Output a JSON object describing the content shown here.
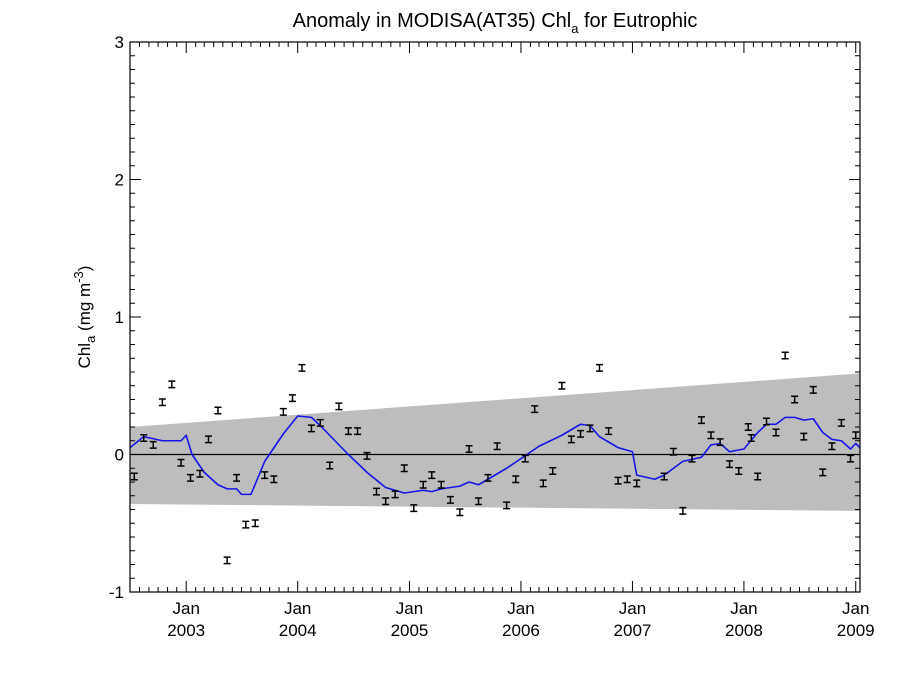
{
  "chart_data": {
    "type": "line",
    "title": {
      "prefix": "Anomaly in MODISA(AT35) Chl",
      "subscript": "a",
      "suffix": " for Eutrophic"
    },
    "ylabel": {
      "main": "Chl",
      "subscript": "a",
      "unit_open": " (mg m",
      "unit_exp": "-3",
      "unit_close": ")"
    },
    "xlim": [
      "2002-07-01",
      "2009-01-15"
    ],
    "ylim": [
      -1,
      3
    ],
    "yticks": [
      -1,
      0,
      1,
      2,
      3
    ],
    "ytick_labels": [
      "-1",
      "0",
      "1",
      "2",
      "3"
    ],
    "xticks": [
      {
        "date": "2003-01-01",
        "month": "Jan",
        "year": "2003"
      },
      {
        "date": "2004-01-01",
        "month": "Jan",
        "year": "2004"
      },
      {
        "date": "2005-01-01",
        "month": "Jan",
        "year": "2005"
      },
      {
        "date": "2006-01-01",
        "month": "Jan",
        "year": "2006"
      },
      {
        "date": "2007-01-01",
        "month": "Jan",
        "year": "2007"
      },
      {
        "date": "2008-01-01",
        "month": "Jan",
        "year": "2008"
      },
      {
        "date": "2009-01-01",
        "month": "Jan",
        "year": "2009"
      }
    ],
    "zero_line": 0,
    "band": {
      "color": "#bdbdbd",
      "upper": [
        [
          "2002-07-01",
          0.2
        ],
        [
          "2009-01-15",
          0.59
        ]
      ],
      "lower": [
        [
          "2002-07-01",
          -0.36
        ],
        [
          "2009-01-15",
          -0.41
        ]
      ]
    },
    "series": [
      {
        "kind": "monthly_anomaly_errorbars",
        "color": "#000000",
        "points": [
          [
            "2002-07-15",
            -0.16
          ],
          [
            "2002-08-15",
            0.12
          ],
          [
            "2002-09-15",
            0.07
          ],
          [
            "2002-10-15",
            0.38
          ],
          [
            "2002-11-15",
            0.51
          ],
          [
            "2002-12-15",
            -0.06
          ],
          [
            "2003-01-15",
            -0.17
          ],
          [
            "2003-02-15",
            -0.14
          ],
          [
            "2003-03-15",
            0.11
          ],
          [
            "2003-04-15",
            0.32
          ],
          [
            "2003-05-15",
            -0.77
          ],
          [
            "2003-06-15",
            -0.17
          ],
          [
            "2003-07-15",
            -0.51
          ],
          [
            "2003-08-15",
            -0.5
          ],
          [
            "2003-09-15",
            -0.15
          ],
          [
            "2003-10-15",
            -0.18
          ],
          [
            "2003-11-15",
            0.31
          ],
          [
            "2003-12-15",
            0.41
          ],
          [
            "2004-01-15",
            0.63
          ],
          [
            "2004-02-15",
            0.19
          ],
          [
            "2004-03-15",
            0.23
          ],
          [
            "2004-04-15",
            -0.08
          ],
          [
            "2004-05-15",
            0.35
          ],
          [
            "2004-06-15",
            0.17
          ],
          [
            "2004-07-15",
            0.17
          ],
          [
            "2004-08-15",
            -0.01
          ],
          [
            "2004-09-15",
            -0.27
          ],
          [
            "2004-10-15",
            -0.34
          ],
          [
            "2004-11-15",
            -0.29
          ],
          [
            "2004-12-15",
            -0.1
          ],
          [
            "2005-01-15",
            -0.39
          ],
          [
            "2005-02-15",
            -0.22
          ],
          [
            "2005-03-15",
            -0.15
          ],
          [
            "2005-04-15",
            -0.22
          ],
          [
            "2005-05-15",
            -0.33
          ],
          [
            "2005-06-15",
            -0.42
          ],
          [
            "2005-07-15",
            0.04
          ],
          [
            "2005-08-15",
            -0.34
          ],
          [
            "2005-09-15",
            -0.17
          ],
          [
            "2005-10-15",
            0.06
          ],
          [
            "2005-11-15",
            -0.37
          ],
          [
            "2005-12-15",
            -0.18
          ],
          [
            "2006-01-15",
            -0.03
          ],
          [
            "2006-02-15",
            0.33
          ],
          [
            "2006-03-15",
            -0.21
          ],
          [
            "2006-04-15",
            -0.12
          ],
          [
            "2006-05-15",
            0.5
          ],
          [
            "2006-06-15",
            0.11
          ],
          [
            "2006-07-15",
            0.15
          ],
          [
            "2006-08-15",
            0.19
          ],
          [
            "2006-09-15",
            0.63
          ],
          [
            "2006-10-15",
            0.17
          ],
          [
            "2006-11-15",
            -0.19
          ],
          [
            "2006-12-15",
            -0.18
          ],
          [
            "2007-01-15",
            -0.21
          ],
          [
            "2007-04-15",
            -0.16
          ],
          [
            "2007-05-15",
            0.02
          ],
          [
            "2007-06-15",
            -0.41
          ],
          [
            "2007-07-15",
            -0.03
          ],
          [
            "2007-08-15",
            0.25
          ],
          [
            "2007-09-15",
            0.14
          ],
          [
            "2007-10-15",
            0.09
          ],
          [
            "2007-11-15",
            -0.07
          ],
          [
            "2007-12-15",
            -0.12
          ],
          [
            "2008-01-15",
            0.2
          ],
          [
            "2008-01-25",
            0.12
          ],
          [
            "2008-02-15",
            -0.16
          ],
          [
            "2008-03-15",
            0.24
          ],
          [
            "2008-04-15",
            0.16
          ],
          [
            "2008-05-15",
            0.72
          ],
          [
            "2008-06-15",
            0.4
          ],
          [
            "2008-07-15",
            0.13
          ],
          [
            "2008-08-15",
            0.47
          ],
          [
            "2008-09-15",
            -0.13
          ],
          [
            "2008-10-15",
            0.06
          ],
          [
            "2008-11-15",
            0.23
          ],
          [
            "2008-12-15",
            -0.03
          ],
          [
            "2009-01-01",
            0.14
          ]
        ]
      },
      {
        "kind": "running_mean",
        "color": "#1515e6",
        "points": [
          [
            "2002-07-01",
            0.05
          ],
          [
            "2002-08-15",
            0.13
          ],
          [
            "2002-10-15",
            0.1
          ],
          [
            "2002-12-15",
            0.1
          ],
          [
            "2003-01-01",
            0.14
          ],
          [
            "2003-01-20",
            0.0
          ],
          [
            "2003-03-01",
            -0.13
          ],
          [
            "2003-04-15",
            -0.22
          ],
          [
            "2003-05-15",
            -0.25
          ],
          [
            "2003-06-15",
            -0.25
          ],
          [
            "2003-07-01",
            -0.29
          ],
          [
            "2003-08-01",
            -0.29
          ],
          [
            "2003-09-15",
            -0.05
          ],
          [
            "2003-11-15",
            0.15
          ],
          [
            "2004-01-01",
            0.28
          ],
          [
            "2004-02-15",
            0.27
          ],
          [
            "2004-03-15",
            0.21
          ],
          [
            "2004-05-15",
            0.07
          ],
          [
            "2004-06-15",
            0.0
          ],
          [
            "2004-08-15",
            -0.13
          ],
          [
            "2004-10-15",
            -0.24
          ],
          [
            "2004-12-15",
            -0.28
          ],
          [
            "2005-02-15",
            -0.26
          ],
          [
            "2005-03-15",
            -0.27
          ],
          [
            "2005-04-15",
            -0.25
          ],
          [
            "2005-06-15",
            -0.23
          ],
          [
            "2005-07-15",
            -0.2
          ],
          [
            "2005-08-15",
            -0.22
          ],
          [
            "2005-09-15",
            -0.18
          ],
          [
            "2005-11-15",
            -0.1
          ],
          [
            "2006-01-01",
            -0.03
          ],
          [
            "2006-03-01",
            0.06
          ],
          [
            "2006-05-15",
            0.14
          ],
          [
            "2006-07-15",
            0.22
          ],
          [
            "2006-08-15",
            0.21
          ],
          [
            "2006-09-15",
            0.13
          ],
          [
            "2006-11-15",
            0.05
          ],
          [
            "2007-01-01",
            0.02
          ],
          [
            "2007-01-15",
            -0.15
          ],
          [
            "2007-03-15",
            -0.18
          ],
          [
            "2007-04-15",
            -0.15
          ],
          [
            "2007-06-15",
            -0.05
          ],
          [
            "2007-08-15",
            -0.02
          ],
          [
            "2007-09-15",
            0.07
          ],
          [
            "2007-10-15",
            0.08
          ],
          [
            "2007-11-15",
            0.02
          ],
          [
            "2008-01-01",
            0.04
          ],
          [
            "2008-02-15",
            0.16
          ],
          [
            "2008-03-15",
            0.22
          ],
          [
            "2008-04-15",
            0.22
          ],
          [
            "2008-05-15",
            0.27
          ],
          [
            "2008-06-15",
            0.27
          ],
          [
            "2008-07-15",
            0.25
          ],
          [
            "2008-08-15",
            0.26
          ],
          [
            "2008-09-15",
            0.16
          ],
          [
            "2008-10-15",
            0.11
          ],
          [
            "2008-11-15",
            0.1
          ],
          [
            "2008-12-15",
            0.04
          ],
          [
            "2009-01-01",
            0.08
          ],
          [
            "2009-01-15",
            0.05
          ]
        ]
      }
    ]
  }
}
